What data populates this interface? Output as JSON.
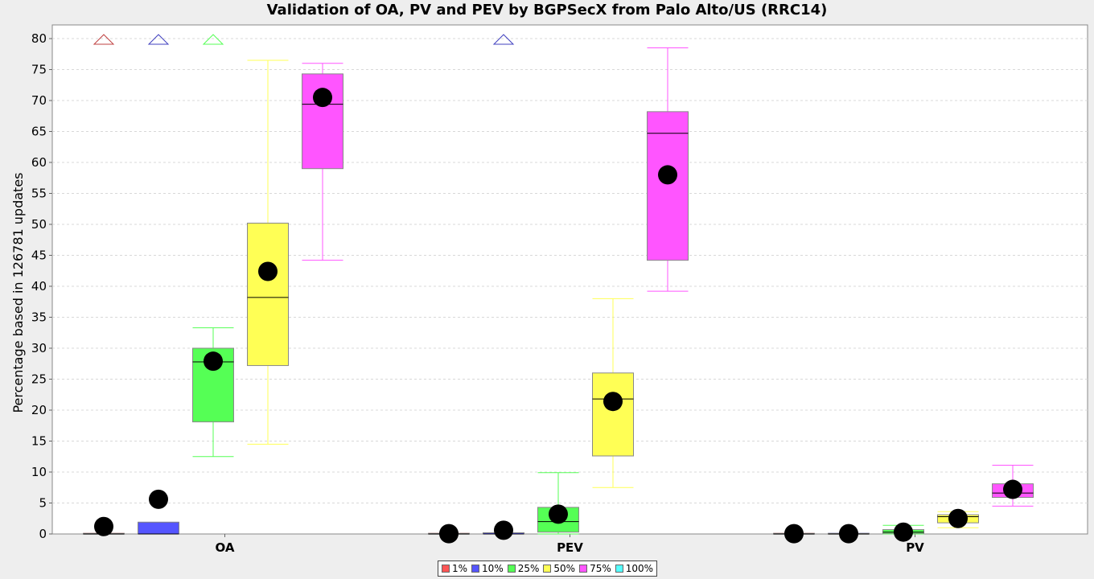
{
  "chart_data": {
    "type": "box",
    "title": "Validation of OA, PV and PEV by BGPSecX from Palo Alto/US (RRC14)",
    "ylabel": "Percentage based in 126781 updates",
    "xlabel": "",
    "ylim": [
      0,
      80
    ],
    "yticks": [
      "0",
      "5",
      "10",
      "15",
      "20",
      "25",
      "30",
      "35",
      "40",
      "45",
      "50",
      "55",
      "60",
      "65",
      "70",
      "75",
      "80"
    ],
    "grid": true,
    "legend_position": "bottom",
    "categories": [
      "OA",
      "PEV",
      "PV"
    ],
    "series": [
      {
        "name": "1%",
        "color": "#ff5555",
        "boxes": [
          {
            "q1": 0,
            "median": 0,
            "q3": 0.1,
            "whisker_low": 0,
            "whisker_high": 0.1,
            "mean": 1.2,
            "outlier_above": true
          },
          {
            "q1": 0,
            "median": 0,
            "q3": 0.1,
            "whisker_low": 0,
            "whisker_high": 0.1,
            "mean": 0.05,
            "outlier_above": false
          },
          {
            "q1": 0,
            "median": 0,
            "q3": 0.1,
            "whisker_low": 0,
            "whisker_high": 0.1,
            "mean": 0.05,
            "outlier_above": false
          }
        ]
      },
      {
        "name": "10%",
        "color": "#5555ff",
        "boxes": [
          {
            "q1": 0,
            "median": 0,
            "q3": 1.9,
            "whisker_low": 0,
            "whisker_high": 1.9,
            "mean": 5.6,
            "outlier_above": true
          },
          {
            "q1": 0,
            "median": 0,
            "q3": 0.2,
            "whisker_low": 0,
            "whisker_high": 0.2,
            "mean": 0.6,
            "outlier_above": true
          },
          {
            "q1": 0,
            "median": 0,
            "q3": 0.1,
            "whisker_low": 0,
            "whisker_high": 0.1,
            "mean": 0.05,
            "outlier_above": false
          }
        ]
      },
      {
        "name": "25%",
        "color": "#55ff55",
        "boxes": [
          {
            "q1": 18.1,
            "median": 27.8,
            "q3": 30.0,
            "whisker_low": 12.5,
            "whisker_high": 33.3,
            "mean": 27.9,
            "outlier_above": true
          },
          {
            "q1": 0.3,
            "median": 2.0,
            "q3": 4.3,
            "whisker_low": 0,
            "whisker_high": 9.9,
            "mean": 3.2,
            "outlier_above": false
          },
          {
            "q1": 0.1,
            "median": 0.3,
            "q3": 0.7,
            "whisker_low": 0,
            "whisker_high": 1.4,
            "mean": 0.3,
            "outlier_above": false
          }
        ]
      },
      {
        "name": "50%",
        "color": "#ffff55",
        "boxes": [
          {
            "q1": 27.2,
            "median": 38.2,
            "q3": 50.2,
            "whisker_low": 14.5,
            "whisker_high": 76.5,
            "mean": 42.4,
            "outlier_above": false
          },
          {
            "q1": 12.6,
            "median": 21.8,
            "q3": 26.0,
            "whisker_low": 7.5,
            "whisker_high": 38.0,
            "mean": 21.4,
            "outlier_above": false
          },
          {
            "q1": 1.8,
            "median": 2.8,
            "q3": 3.1,
            "whisker_low": 1.0,
            "whisker_high": 3.6,
            "mean": 2.5,
            "outlier_above": false
          }
        ]
      },
      {
        "name": "75%",
        "color": "#ff55ff",
        "boxes": [
          {
            "q1": 59.0,
            "median": 69.4,
            "q3": 74.3,
            "whisker_low": 44.2,
            "whisker_high": 76.0,
            "mean": 70.5,
            "outlier_above": false
          },
          {
            "q1": 44.2,
            "median": 64.7,
            "q3": 68.2,
            "whisker_low": 39.2,
            "whisker_high": 78.5,
            "mean": 58.0,
            "outlier_above": false
          },
          {
            "q1": 5.9,
            "median": 6.6,
            "q3": 8.1,
            "whisker_low": 4.5,
            "whisker_high": 11.1,
            "mean": 7.2,
            "outlier_above": false
          }
        ]
      },
      {
        "name": "100%",
        "color": "#55ffff",
        "boxes": []
      }
    ]
  }
}
